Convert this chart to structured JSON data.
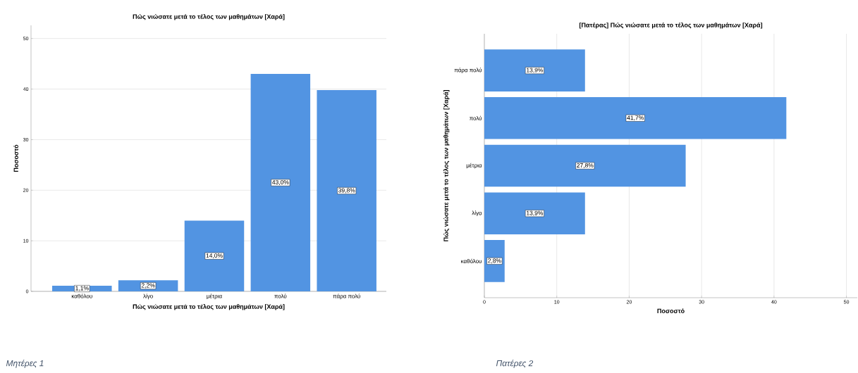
{
  "chart_data": [
    {
      "type": "bar",
      "title": "Πώς νιώσατε μετά το τέλος των μαθημάτων  [Χαρά]",
      "xlabel": "Πώς νιώσατε μετά το τέλος των μαθημάτων  [Χαρά]",
      "ylabel": "Ποσοστό",
      "categories": [
        "καθόλου",
        "λίγο",
        "μέτρια",
        "πολύ",
        "πάρα πολύ"
      ],
      "values": [
        1.1,
        2.2,
        14.0,
        43.0,
        39.8
      ],
      "value_labels": [
        "1,1%",
        "2,2%",
        "14,0%",
        "43,0%",
        "39,8%"
      ],
      "color": "#5294e2",
      "ylim": [
        0,
        52.6
      ],
      "yticks": [
        0,
        10,
        20,
        30,
        40,
        50
      ],
      "grid": "y",
      "annotations": [
        "Μητέρες 1"
      ]
    },
    {
      "type": "bar",
      "orientation": "horizontal",
      "title": "[Πατέρας] Πώς νιώσατε μετά το τέλος των μαθημάτων  [Χαρά]",
      "xlabel": "Ποσοστό",
      "ylabel": "Πώς νιώσατε μετά το τέλος των μαθημάτων  [Χαρά]",
      "categories": [
        "πάρα πολύ",
        "πολύ",
        "μέτρια",
        "λίγο",
        "καθόλου"
      ],
      "values": [
        13.9,
        41.7,
        27.8,
        13.9,
        2.8
      ],
      "value_labels": [
        "13,9%",
        "41,7%",
        "27,8%",
        "13,9%",
        "2,8%"
      ],
      "color": "#5294e2",
      "xlim": [
        0,
        51.5
      ],
      "xticks": [
        0,
        10,
        20,
        30,
        40,
        50
      ],
      "grid": "x",
      "annotations": [
        "Πατέρες 2"
      ]
    }
  ]
}
